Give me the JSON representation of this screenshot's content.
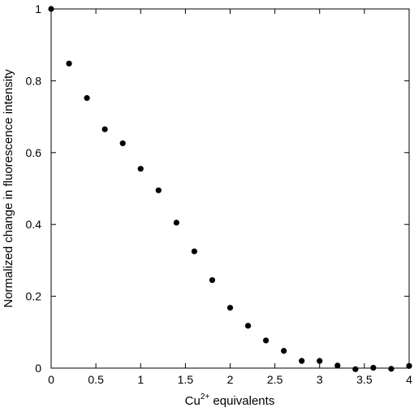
{
  "chart_data": {
    "type": "scatter",
    "xlabel": "Cu",
    "xlabel_superscript": "2+",
    "xlabel_suffix": " equivalents",
    "ylabel": "Normalized change in fluorescence intensity",
    "xlim": [
      0,
      4
    ],
    "ylim": [
      0,
      1
    ],
    "xticks": [
      0,
      0.5,
      1,
      1.5,
      2,
      2.5,
      3,
      3.5,
      4
    ],
    "xtick_labels": [
      "0",
      "0.5",
      "1",
      "1.5",
      "2",
      "2.5",
      "3",
      "3.5",
      "4"
    ],
    "yticks": [
      0,
      0.2,
      0.4,
      0.6,
      0.8,
      1
    ],
    "ytick_labels": [
      "0",
      "0.2",
      "0.4",
      "0.6",
      "0.8",
      "1"
    ],
    "grid": false,
    "marker_color": "#000000",
    "series": [
      {
        "x": [
          0,
          0.2,
          0.4,
          0.6,
          0.8,
          1.0,
          1.2,
          1.4,
          1.6,
          1.8,
          2.0,
          2.2,
          2.4,
          2.6,
          2.8,
          3.0,
          3.2,
          3.4,
          3.6,
          3.8,
          4.0
        ],
        "y": [
          1.0,
          0.848,
          0.752,
          0.665,
          0.626,
          0.555,
          0.495,
          0.405,
          0.325,
          0.245,
          0.168,
          0.118,
          0.077,
          0.048,
          0.02,
          0.02,
          0.007,
          -0.003,
          0.001,
          -0.002,
          0.006
        ]
      }
    ]
  }
}
